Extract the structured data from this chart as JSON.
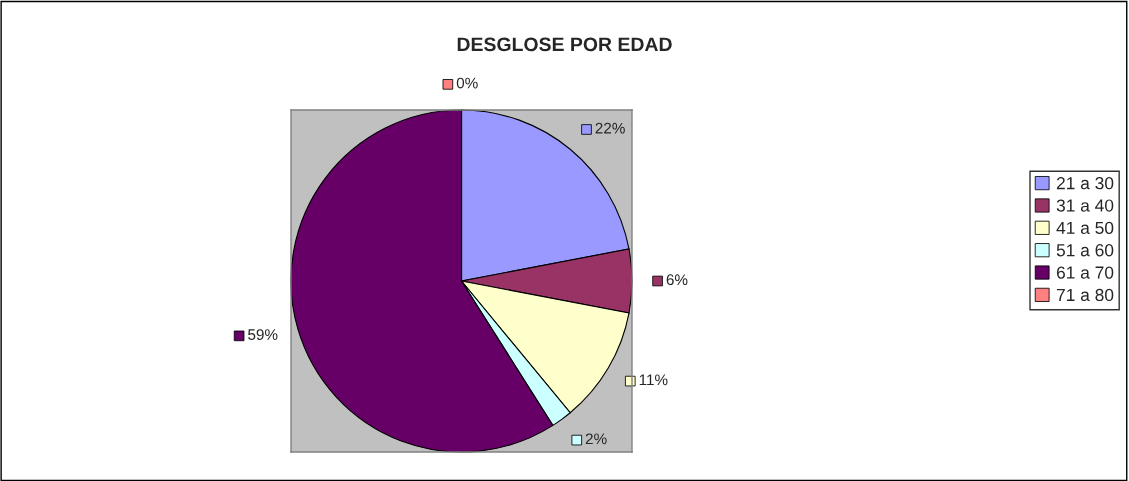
{
  "chart_data": {
    "type": "pie",
    "title": "DESGLOSE POR EDAD",
    "categories": [
      "21 a 30",
      "31 a 40",
      "41 a 50",
      "51 a 60",
      "61 a 70",
      "71 a 80"
    ],
    "values": [
      22,
      6,
      11,
      2,
      59,
      0
    ],
    "colors": [
      "#9999ff",
      "#993366",
      "#ffffcc",
      "#ccffff",
      "#660066",
      "#ff8080"
    ],
    "value_labels": [
      "22%",
      "6%",
      "11%",
      "2%",
      "59%",
      "0%"
    ],
    "legend": "right"
  }
}
